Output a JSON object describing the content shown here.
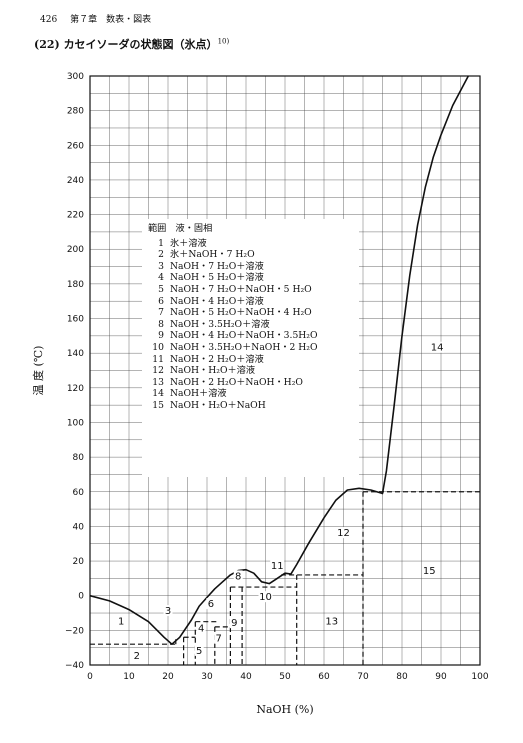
{
  "page_header": {
    "page_number": "426",
    "chapter": "第７章　数表・図表"
  },
  "figure": {
    "number": "(22)",
    "title": "カセイソーダの状態図（氷点）",
    "ref": "10)"
  },
  "chart_data": {
    "type": "line",
    "xlabel": "NaOH (%)",
    "ylabel": "温 度 (℃)",
    "xlim": [
      0,
      100
    ],
    "ylim": [
      -40,
      300
    ],
    "x_ticks": [
      0,
      10,
      20,
      30,
      40,
      50,
      60,
      70,
      80,
      90,
      100
    ],
    "y_ticks": [
      -40,
      -20,
      0,
      20,
      40,
      60,
      80,
      100,
      120,
      140,
      160,
      180,
      200,
      220,
      240,
      260,
      280,
      300
    ],
    "grid": true,
    "liquidus_curve": [
      {
        "x": 0,
        "y": 0
      },
      {
        "x": 5,
        "y": -3
      },
      {
        "x": 10,
        "y": -8
      },
      {
        "x": 15,
        "y": -15
      },
      {
        "x": 19,
        "y": -24
      },
      {
        "x": 21,
        "y": -28
      },
      {
        "x": 23,
        "y": -24
      },
      {
        "x": 26,
        "y": -14
      },
      {
        "x": 28,
        "y": -6
      },
      {
        "x": 30,
        "y": -1
      },
      {
        "x": 32,
        "y": 4
      },
      {
        "x": 34,
        "y": 8
      },
      {
        "x": 36,
        "y": 12
      },
      {
        "x": 38,
        "y": 14.5
      },
      {
        "x": 40,
        "y": 15
      },
      {
        "x": 42,
        "y": 13
      },
      {
        "x": 44,
        "y": 8
      },
      {
        "x": 46,
        "y": 7
      },
      {
        "x": 48,
        "y": 10
      },
      {
        "x": 50,
        "y": 13
      },
      {
        "x": 51.5,
        "y": 12.5
      },
      {
        "x": 53,
        "y": 18
      },
      {
        "x": 56,
        "y": 30
      },
      {
        "x": 60,
        "y": 45
      },
      {
        "x": 63,
        "y": 55
      },
      {
        "x": 66,
        "y": 61
      },
      {
        "x": 69,
        "y": 62
      },
      {
        "x": 72,
        "y": 61
      },
      {
        "x": 75,
        "y": 59
      },
      {
        "x": 76,
        "y": 72
      },
      {
        "x": 78,
        "y": 110
      },
      {
        "x": 80,
        "y": 150
      },
      {
        "x": 82,
        "y": 185
      },
      {
        "x": 84,
        "y": 214
      },
      {
        "x": 86,
        "y": 236
      },
      {
        "x": 88,
        "y": 253
      },
      {
        "x": 90,
        "y": 266
      },
      {
        "x": 93,
        "y": 283
      },
      {
        "x": 97,
        "y": 300
      }
    ],
    "dashed_lines": [
      [
        {
          "x": 0,
          "y": -28
        },
        {
          "x": 22,
          "y": -28
        }
      ],
      [
        {
          "x": 22,
          "y": -28
        },
        {
          "x": 22,
          "y": -24
        }
      ],
      [
        {
          "x": 24,
          "y": -24
        },
        {
          "x": 24,
          "y": -40
        }
      ],
      [
        {
          "x": 24,
          "y": -24
        },
        {
          "x": 27,
          "y": -24
        }
      ],
      [
        {
          "x": 27,
          "y": -15
        },
        {
          "x": 27,
          "y": -40
        }
      ],
      [
        {
          "x": 27,
          "y": -15
        },
        {
          "x": 33,
          "y": -15
        }
      ],
      [
        {
          "x": 32,
          "y": -18
        },
        {
          "x": 36,
          "y": -18
        }
      ],
      [
        {
          "x": 32,
          "y": -18
        },
        {
          "x": 32,
          "y": -40
        }
      ],
      [
        {
          "x": 36,
          "y": 5
        },
        {
          "x": 36,
          "y": -40
        }
      ],
      [
        {
          "x": 36,
          "y": 5
        },
        {
          "x": 53,
          "y": 5
        }
      ],
      [
        {
          "x": 39,
          "y": 5
        },
        {
          "x": 39,
          "y": -40
        }
      ],
      [
        {
          "x": 49,
          "y": 12
        },
        {
          "x": 70,
          "y": 12
        }
      ],
      [
        {
          "x": 53,
          "y": 12
        },
        {
          "x": 53,
          "y": -40
        }
      ],
      [
        {
          "x": 70,
          "y": 60
        },
        {
          "x": 70,
          "y": -40
        }
      ],
      [
        {
          "x": 70,
          "y": 60
        },
        {
          "x": 100,
          "y": 60
        }
      ]
    ],
    "region_labels": [
      {
        "id": "1",
        "x": 8,
        "y": -16
      },
      {
        "id": "2",
        "x": 12,
        "y": -36
      },
      {
        "id": "3",
        "x": 20,
        "y": -10
      },
      {
        "id": "4",
        "x": 28.5,
        "y": -20
      },
      {
        "id": "5",
        "x": 28,
        "y": -33
      },
      {
        "id": "6",
        "x": 31,
        "y": -6
      },
      {
        "id": "7",
        "x": 33,
        "y": -26
      },
      {
        "id": "8",
        "x": 38,
        "y": 10
      },
      {
        "id": "9",
        "x": 37,
        "y": -17
      },
      {
        "id": "10",
        "x": 45,
        "y": -2
      },
      {
        "id": "11",
        "x": 48,
        "y": 16
      },
      {
        "id": "12",
        "x": 65,
        "y": 35
      },
      {
        "id": "13",
        "x": 62,
        "y": -16
      },
      {
        "id": "14",
        "x": 89,
        "y": 142
      },
      {
        "id": "15",
        "x": 87,
        "y": 13
      }
    ],
    "legend": {
      "header": "範囲　液・固相",
      "entries": [
        {
          "no": "1",
          "text": "氷＋溶液"
        },
        {
          "no": "2",
          "text": "氷＋NaOH・7 H₂O"
        },
        {
          "no": "3",
          "text": "NaOH・7 H₂O＋溶液"
        },
        {
          "no": "4",
          "text": "NaOH・5 H₂O＋溶液"
        },
        {
          "no": "5",
          "text": "NaOH・7 H₂O＋NaOH・5 H₂O"
        },
        {
          "no": "6",
          "text": "NaOH・4 H₂O＋溶液"
        },
        {
          "no": "7",
          "text": "NaOH・5 H₂O＋NaOH・4 H₂O"
        },
        {
          "no": "8",
          "text": "NaOH・3.5H₂O＋溶液"
        },
        {
          "no": "9",
          "text": "NaOH・4 H₂O＋NaOH・3.5H₂O"
        },
        {
          "no": "10",
          "text": "NaOH・3.5H₂O＋NaOH・2 H₂O"
        },
        {
          "no": "11",
          "text": "NaOH・2 H₂O＋溶液"
        },
        {
          "no": "12",
          "text": "NaOH・H₂O＋溶液"
        },
        {
          "no": "13",
          "text": "NaOH・2 H₂O＋NaOH・H₂O"
        },
        {
          "no": "14",
          "text": "NaOH＋溶液"
        },
        {
          "no": "15",
          "text": "NaOH・H₂O＋NaOH"
        }
      ]
    }
  }
}
